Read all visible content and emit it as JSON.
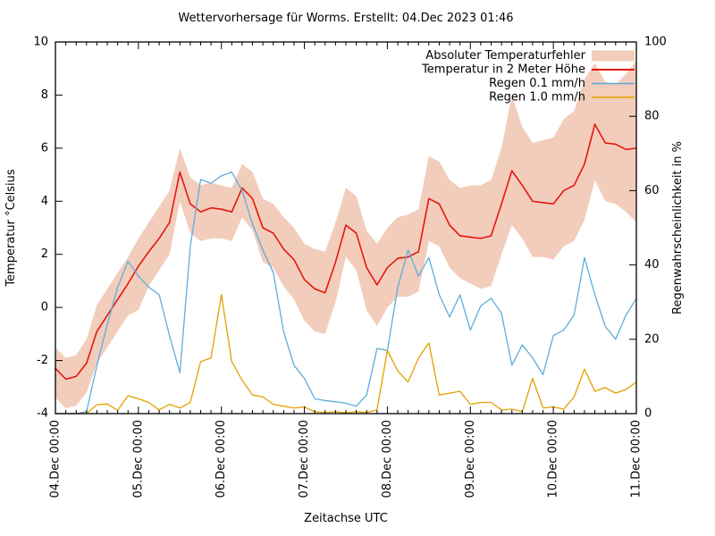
{
  "chart_data": {
    "type": "line",
    "title": "Wettervorhersage für Worms. Erstellt: 04.Dec 2023 01:46",
    "xlabel": "Zeitachse UTC",
    "ylabel_left": "Temperatur °Celsius",
    "ylabel_right": "Regenwahrscheinlichkeit in %",
    "x_tick_labels": [
      "04.Dec 00:00",
      "05.Dec 00:00",
      "06.Dec 00:00",
      "07.Dec 00:00",
      "08.Dec 00:00",
      "09.Dec 00:00",
      "10.Dec 00:00",
      "11.Dec 00:00"
    ],
    "x_hours_span": 168,
    "x_minor_step_hours": 3,
    "y_left": {
      "min": -4,
      "max": 10,
      "ticks": [
        -4,
        -2,
        0,
        2,
        4,
        6,
        8,
        10
      ]
    },
    "y_right": {
      "min": 0,
      "max": 100,
      "ticks": [
        0,
        20,
        40,
        60,
        80,
        100
      ]
    },
    "grid": false,
    "legend_position": "top-right",
    "x_hours": [
      0,
      3,
      6,
      9,
      12,
      15,
      18,
      21,
      24,
      27,
      30,
      33,
      36,
      39,
      42,
      45,
      48,
      51,
      54,
      57,
      60,
      63,
      66,
      69,
      72,
      75,
      78,
      81,
      84,
      87,
      90,
      93,
      96,
      99,
      102,
      105,
      108,
      111,
      114,
      117,
      120,
      123,
      126,
      129,
      132,
      135,
      138,
      141,
      144,
      147,
      150,
      153,
      156,
      159,
      162,
      165,
      168
    ],
    "series": [
      {
        "name": "Absoluter Temperaturfehler",
        "type": "band",
        "axis": "left",
        "color": "#f2cdbb",
        "upper": [
          -1.5,
          -1.9,
          -1.8,
          -1.2,
          0.1,
          0.7,
          1.3,
          1.9,
          2.6,
          3.2,
          3.8,
          4.4,
          6.0,
          4.9,
          4.6,
          4.7,
          4.6,
          4.5,
          5.4,
          5.1,
          4.1,
          3.9,
          3.4,
          3.0,
          2.4,
          2.2,
          2.1,
          3.2,
          4.5,
          4.2,
          2.9,
          2.4,
          3.0,
          3.4,
          3.5,
          3.7,
          5.7,
          5.5,
          4.8,
          4.5,
          4.6,
          4.6,
          4.8,
          6.0,
          8.0,
          6.8,
          6.2,
          6.3,
          6.4,
          7.1,
          7.4,
          8.6,
          9.2,
          8.5,
          8.4,
          8.8,
          9.3
        ],
        "lower": [
          -3.4,
          -3.8,
          -3.7,
          -3.2,
          -2.1,
          -1.5,
          -0.9,
          -0.3,
          -0.1,
          0.8,
          1.4,
          2.0,
          4.0,
          2.8,
          2.5,
          2.6,
          2.6,
          2.5,
          3.4,
          2.9,
          1.7,
          1.5,
          0.8,
          0.3,
          -0.5,
          -0.9,
          -1.0,
          0.2,
          1.9,
          1.4,
          -0.1,
          -0.7,
          0.0,
          0.4,
          0.4,
          0.6,
          2.5,
          2.3,
          1.5,
          1.1,
          0.9,
          0.7,
          0.8,
          2.0,
          3.1,
          2.6,
          1.9,
          1.9,
          1.8,
          2.3,
          2.5,
          3.3,
          4.8,
          4.0,
          3.9,
          3.6,
          3.2
        ]
      },
      {
        "name": "Temperatur in 2 Meter Höhe",
        "type": "line",
        "axis": "left",
        "color": "#e8150f",
        "width": 1.6,
        "values": [
          -2.3,
          -2.7,
          -2.6,
          -2.1,
          -0.9,
          -0.3,
          0.3,
          0.9,
          1.55,
          2.1,
          2.6,
          3.2,
          5.1,
          3.9,
          3.6,
          3.75,
          3.7,
          3.6,
          4.5,
          4.1,
          3.0,
          2.8,
          2.2,
          1.8,
          1.05,
          0.7,
          0.55,
          1.7,
          3.1,
          2.8,
          1.5,
          0.85,
          1.5,
          1.85,
          1.9,
          2.1,
          4.1,
          3.9,
          3.1,
          2.7,
          2.65,
          2.6,
          2.7,
          3.9,
          5.15,
          4.6,
          4.0,
          3.95,
          3.9,
          4.4,
          4.6,
          5.4,
          6.9,
          6.2,
          6.15,
          5.95,
          6.0
        ]
      },
      {
        "name": "Regen 0.1 mm/h",
        "type": "line",
        "axis": "right",
        "color": "#5dacde",
        "width": 1.3,
        "values": [
          0,
          0,
          0,
          0.5,
          13,
          24,
          34,
          41,
          37,
          34,
          32,
          21,
          11,
          45,
          63,
          62,
          64,
          65,
          60,
          51,
          44,
          38,
          22,
          13,
          9.5,
          4,
          3.5,
          3.2,
          2.8,
          2,
          5,
          17.5,
          17,
          34,
          44,
          37,
          42,
          32,
          26,
          32,
          22.5,
          29,
          31,
          27,
          13,
          18.5,
          15,
          10.5,
          21,
          22.5,
          26.5,
          42,
          32,
          23.5,
          20,
          26.5,
          31
        ]
      },
      {
        "name": "Regen 1.0 mm/h",
        "type": "line",
        "axis": "right",
        "color": "#e3a000",
        "width": 1.3,
        "values": [
          0,
          0,
          0,
          0,
          2.4,
          2.6,
          0.9,
          4.8,
          4.0,
          3.0,
          1.0,
          2.5,
          1.5,
          3.0,
          14,
          15,
          32,
          14,
          9,
          5,
          4.5,
          2.5,
          2,
          1.5,
          1.8,
          0.5,
          0.3,
          0.5,
          0.2,
          0.5,
          0.3,
          1.0,
          17,
          11.5,
          8.5,
          15,
          19,
          5,
          5.5,
          6,
          2.5,
          3,
          3,
          1,
          1.2,
          0.5,
          9.5,
          1.5,
          1.8,
          1.2,
          4.5,
          12,
          6,
          7,
          5.5,
          6.5,
          8.5
        ]
      }
    ]
  }
}
